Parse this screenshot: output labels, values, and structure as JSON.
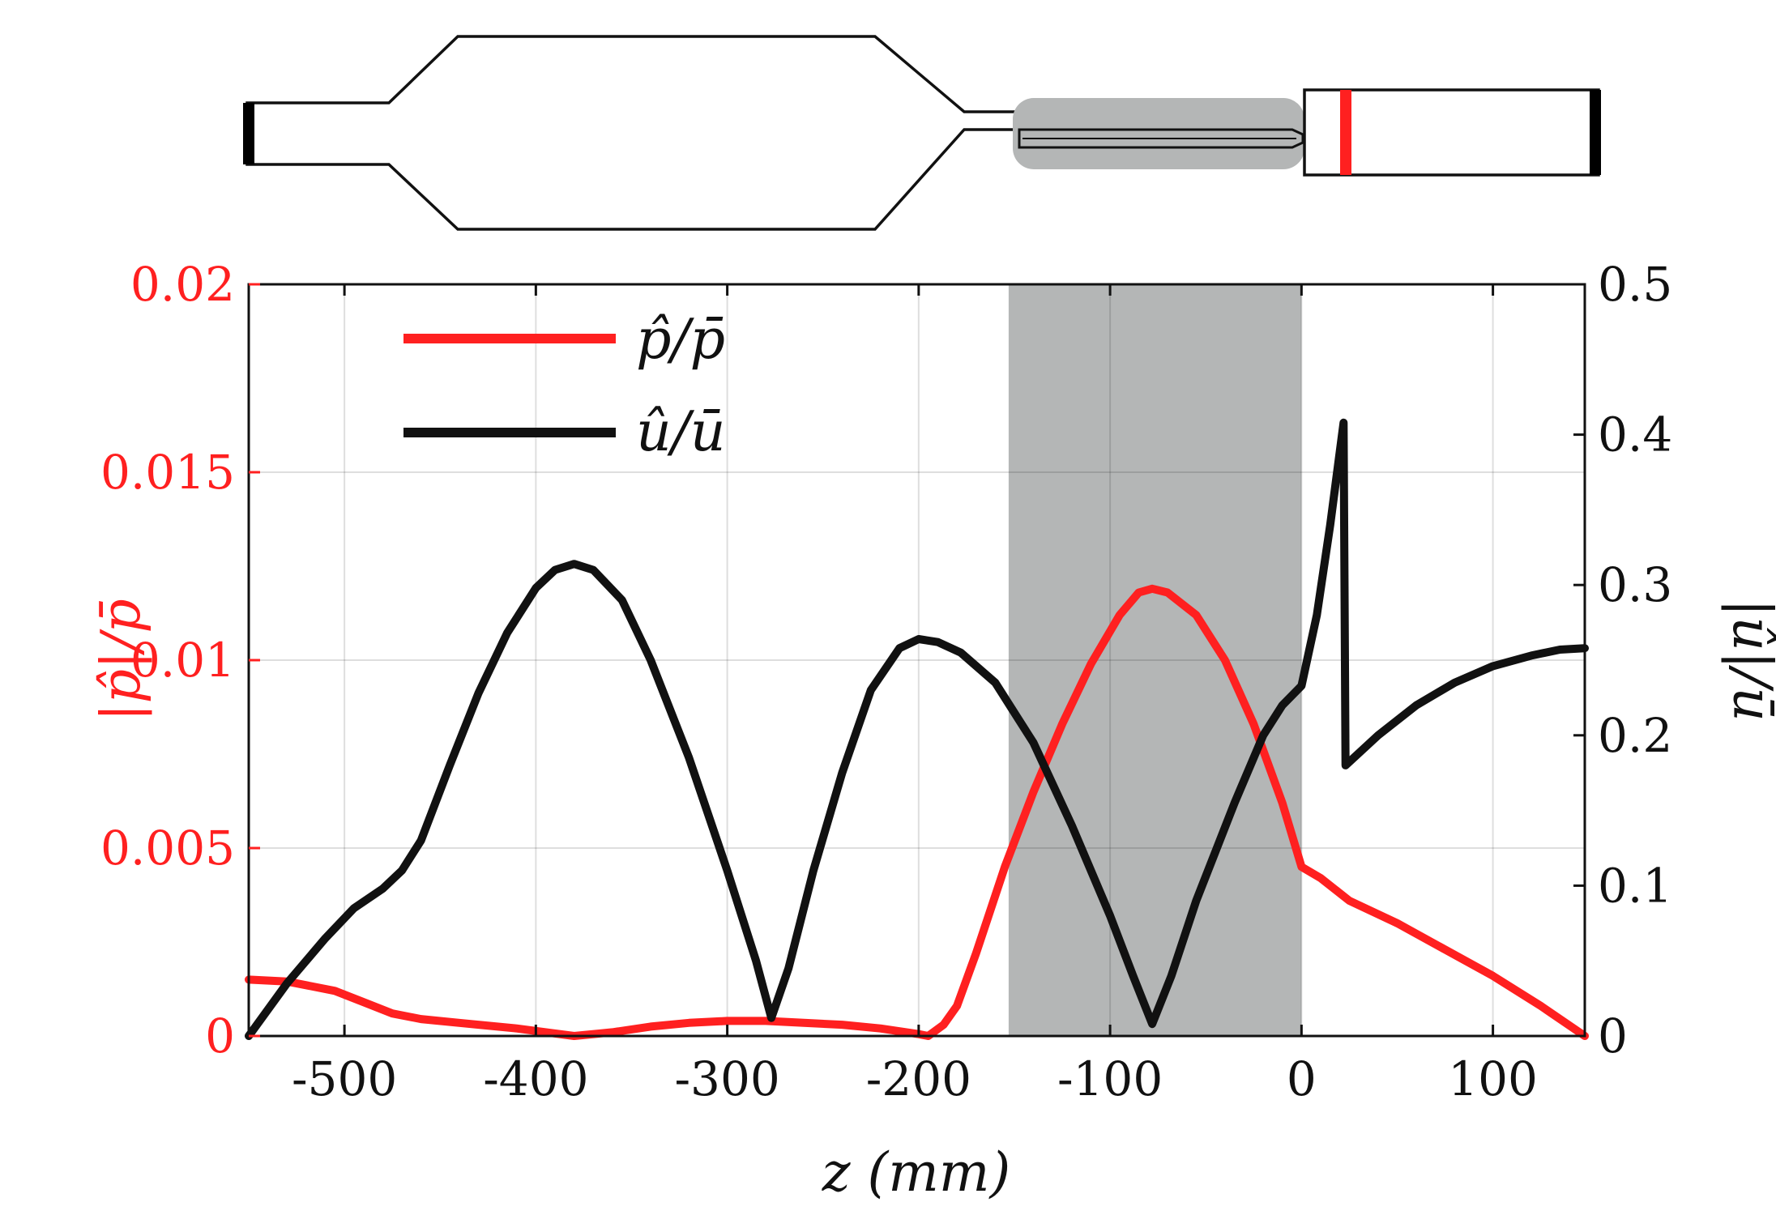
{
  "colors": {
    "pressure": "#ff2020",
    "velocity": "#111111",
    "shade": "#b4b6b6",
    "grid": "#dcdcdc"
  },
  "chart_data": {
    "type": "line",
    "xlabel": "z (mm)",
    "ylabel_left": "|p̂|/p̄",
    "ylabel_right": "|û|/ū",
    "xlim": [
      -550,
      148
    ],
    "ylim_left": [
      0,
      0.02
    ],
    "ylim_right": [
      0,
      0.5
    ],
    "x_ticks": [
      -500,
      -400,
      -300,
      -200,
      -100,
      0,
      100
    ],
    "x_tick_labels": [
      "-500",
      "-400",
      "-300",
      "-200",
      "-100",
      "0",
      "100"
    ],
    "y_left_ticks": [
      0,
      0.005,
      0.01,
      0.015,
      0.02
    ],
    "y_left_tick_labels": [
      "0",
      "0.005",
      "0.01",
      "0.015",
      "0.02"
    ],
    "y_right_ticks": [
      0,
      0.1,
      0.2,
      0.3,
      0.4,
      0.5
    ],
    "y_right_tick_labels": [
      "0",
      "0.1",
      "0.2",
      "0.3",
      "0.4",
      "0.5"
    ],
    "grid": true,
    "legend_position": "top-left",
    "shaded_region": {
      "x": [
        -153,
        0
      ]
    },
    "series": [
      {
        "name": "p̂/p̄",
        "axis": "left",
        "color": "#ff2020",
        "points": [
          [
            -550,
            0.0015
          ],
          [
            -530,
            0.00145
          ],
          [
            -505,
            0.0012
          ],
          [
            -490,
            0.0009
          ],
          [
            -475,
            0.0006
          ],
          [
            -460,
            0.00045
          ],
          [
            -440,
            0.00035
          ],
          [
            -410,
            0.0002
          ],
          [
            -380,
            0.0
          ],
          [
            -360,
            0.0001
          ],
          [
            -340,
            0.00025
          ],
          [
            -320,
            0.00035
          ],
          [
            -300,
            0.0004
          ],
          [
            -280,
            0.0004
          ],
          [
            -260,
            0.00035
          ],
          [
            -240,
            0.0003
          ],
          [
            -220,
            0.0002
          ],
          [
            -200,
            5e-05
          ],
          [
            -195,
            0.0
          ],
          [
            -187,
            0.0003
          ],
          [
            -180,
            0.0008
          ],
          [
            -170,
            0.0022
          ],
          [
            -155,
            0.0045
          ],
          [
            -140,
            0.0065
          ],
          [
            -125,
            0.0083
          ],
          [
            -110,
            0.0099
          ],
          [
            -95,
            0.0112
          ],
          [
            -85,
            0.0118
          ],
          [
            -78,
            0.0119
          ],
          [
            -70,
            0.0118
          ],
          [
            -55,
            0.0112
          ],
          [
            -40,
            0.01
          ],
          [
            -25,
            0.0083
          ],
          [
            -10,
            0.0062
          ],
          [
            0,
            0.0045
          ],
          [
            10,
            0.0042
          ],
          [
            25,
            0.0036
          ],
          [
            50,
            0.003
          ],
          [
            75,
            0.0023
          ],
          [
            100,
            0.0016
          ],
          [
            125,
            0.0008
          ],
          [
            148,
            0.0
          ]
        ]
      },
      {
        "name": "û/ū",
        "axis": "right",
        "color": "#111111",
        "points": [
          [
            -550,
            0.0
          ],
          [
            -530,
            0.035
          ],
          [
            -510,
            0.065
          ],
          [
            -495,
            0.085
          ],
          [
            -480,
            0.098
          ],
          [
            -470,
            0.11
          ],
          [
            -460,
            0.13
          ],
          [
            -445,
            0.18
          ],
          [
            -430,
            0.228
          ],
          [
            -415,
            0.268
          ],
          [
            -400,
            0.298
          ],
          [
            -390,
            0.31
          ],
          [
            -380,
            0.314
          ],
          [
            -370,
            0.31
          ],
          [
            -355,
            0.29
          ],
          [
            -340,
            0.25
          ],
          [
            -320,
            0.185
          ],
          [
            -300,
            0.11
          ],
          [
            -285,
            0.05
          ],
          [
            -277,
            0.012
          ],
          [
            -268,
            0.045
          ],
          [
            -255,
            0.11
          ],
          [
            -240,
            0.175
          ],
          [
            -225,
            0.23
          ],
          [
            -210,
            0.258
          ],
          [
            -200,
            0.264
          ],
          [
            -190,
            0.262
          ],
          [
            -178,
            0.255
          ],
          [
            -160,
            0.235
          ],
          [
            -140,
            0.195
          ],
          [
            -120,
            0.14
          ],
          [
            -100,
            0.08
          ],
          [
            -88,
            0.04
          ],
          [
            -78,
            0.008
          ],
          [
            -68,
            0.04
          ],
          [
            -55,
            0.09
          ],
          [
            -35,
            0.155
          ],
          [
            -20,
            0.2
          ],
          [
            -10,
            0.22
          ],
          [
            0,
            0.233
          ],
          [
            8,
            0.28
          ],
          [
            15,
            0.34
          ],
          [
            22,
            0.408
          ],
          [
            23,
            0.18
          ],
          [
            40,
            0.2
          ],
          [
            60,
            0.22
          ],
          [
            80,
            0.235
          ],
          [
            100,
            0.246
          ],
          [
            120,
            0.253
          ],
          [
            135,
            0.257
          ],
          [
            148,
            0.258
          ]
        ]
      }
    ]
  },
  "schematic": {
    "marker_color": "#ff2020",
    "endcap_color": "#000000"
  }
}
